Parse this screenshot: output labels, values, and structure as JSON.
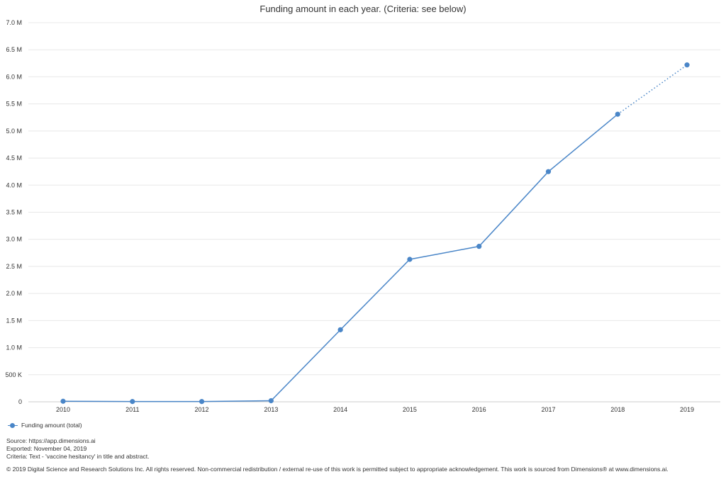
{
  "chart_data": {
    "type": "line",
    "title": "Funding amount in each year. (Criteria: see below)",
    "categories": [
      "2010",
      "2011",
      "2012",
      "2013",
      "2014",
      "2015",
      "2016",
      "2017",
      "2018",
      "2019"
    ],
    "series": [
      {
        "name": "Funding amount (total)",
        "values": [
          10000,
          5000,
          5000,
          20000,
          1330000,
          2630000,
          2870000,
          4250000,
          5310000,
          6220000
        ],
        "color": "#4a86c8",
        "dotted_last_segment": true
      }
    ],
    "y_ticks": [
      {
        "value": 0,
        "label": "0"
      },
      {
        "value": 500000,
        "label": "500 K"
      },
      {
        "value": 1000000,
        "label": "1.0 M"
      },
      {
        "value": 1500000,
        "label": "1.5 M"
      },
      {
        "value": 2000000,
        "label": "2.0 M"
      },
      {
        "value": 2500000,
        "label": "2.5 M"
      },
      {
        "value": 3000000,
        "label": "3.0 M"
      },
      {
        "value": 3500000,
        "label": "3.5 M"
      },
      {
        "value": 4000000,
        "label": "4.0 M"
      },
      {
        "value": 4500000,
        "label": "4.5 M"
      },
      {
        "value": 5000000,
        "label": "5.0 M"
      },
      {
        "value": 5500000,
        "label": "5.5 M"
      },
      {
        "value": 6000000,
        "label": "6.0 M"
      },
      {
        "value": 6500000,
        "label": "6.5 M"
      },
      {
        "value": 7000000,
        "label": "7.0 M"
      }
    ],
    "ylim": [
      0,
      7000000
    ],
    "grid": true,
    "legend_position": "bottom-left"
  },
  "footer": {
    "source": "Source: https://app.dimensions.ai",
    "exported": "Exported: November 04, 2019",
    "criteria": "Criteria: Text - 'vaccine hesitancy' in title and abstract.",
    "copyright": "© 2019 Digital Science and Research Solutions Inc. All rights reserved. Non-commercial redistribution / external re-use of this work is permitted subject to appropriate acknowledgement. This work is sourced from Dimensions® at www.dimensions.ai."
  }
}
